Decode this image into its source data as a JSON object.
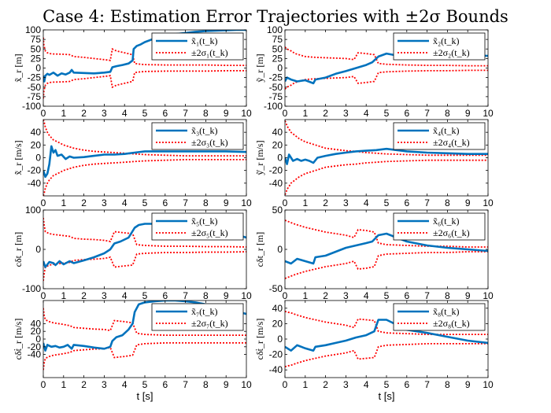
{
  "chart_data": {
    "type": "line",
    "title": "Case 4: Estimation Error Trajectories with ±2σ Bounds",
    "colors": {
      "estimate": "#0072bd",
      "bound": "#ff0000"
    },
    "panels": [
      {
        "id": "p1",
        "ylabel": "x̃_r [m]",
        "xlabel": "",
        "xlim": [
          0,
          10
        ],
        "ylim": [
          -100,
          100
        ],
        "yticks": [
          -100,
          -75,
          -50,
          -25,
          0,
          25,
          50,
          75,
          100
        ],
        "xticks": [
          0,
          1,
          2,
          3,
          4,
          5,
          6,
          7,
          8,
          9,
          10
        ],
        "legend": [
          "x̃₁(t_k)",
          "±2σ₁(t_k)"
        ],
        "estimate": {
          "x": [
            0,
            0.05,
            0.1,
            0.2,
            0.3,
            0.5,
            0.7,
            0.9,
            1.1,
            1.3,
            1.4,
            1.5,
            2,
            2.5,
            3,
            3.3,
            3.4,
            3.6,
            3.9,
            4.2,
            4.4,
            4.45,
            4.6,
            4.8,
            5,
            5.5,
            6,
            6.5,
            7,
            7.5,
            8,
            8.5,
            9,
            9.5,
            10
          ],
          "y": [
            -20,
            -35,
            -20,
            -15,
            -18,
            -12,
            -20,
            -14,
            -17,
            -12,
            -5,
            -12,
            -13,
            -14,
            -12,
            -10,
            2,
            5,
            8,
            12,
            20,
            50,
            58,
            62,
            68,
            78,
            84,
            89,
            92,
            95,
            97,
            98,
            99,
            100,
            100
          ]
        },
        "bound": {
          "x": [
            0,
            0.03,
            0.1,
            0.2,
            0.3,
            0.5,
            1,
            1.3,
            1.5,
            2,
            2.5,
            3,
            3.3,
            3.4,
            3.6,
            4,
            4.4,
            4.5,
            4.8,
            5,
            6,
            7,
            8,
            9,
            10
          ],
          "y": [
            80,
            60,
            45,
            40,
            38,
            37,
            36,
            35,
            30,
            28,
            25,
            22,
            20,
            50,
            45,
            40,
            35,
            12,
            10,
            9,
            8,
            8,
            8,
            7,
            7
          ]
        }
      },
      {
        "id": "p2",
        "ylabel": "ỹ_r [m]",
        "xlabel": "",
        "xlim": [
          0,
          10
        ],
        "ylim": [
          -100,
          100
        ],
        "yticks": [
          -100,
          -75,
          -50,
          -25,
          0,
          25,
          50,
          75,
          100
        ],
        "xticks": [
          0,
          1,
          2,
          3,
          4,
          5,
          6,
          7,
          8,
          9,
          10
        ],
        "legend": [
          "x̃₂(t_k)",
          "±2σ₂(t_k)"
        ],
        "estimate": {
          "x": [
            0,
            0.1,
            0.3,
            0.6,
            1,
            1.4,
            1.5,
            2,
            2.5,
            3,
            3.5,
            4,
            4.3,
            4.6,
            5,
            5.5,
            6,
            7,
            8,
            9,
            10
          ],
          "y": [
            -35,
            -25,
            -30,
            -35,
            -32,
            -40,
            -30,
            -25,
            -15,
            -8,
            0,
            8,
            15,
            30,
            38,
            33,
            35,
            38,
            35,
            34,
            32
          ]
        },
        "bound": {
          "x": [
            0,
            0.1,
            0.3,
            0.5,
            1,
            1.5,
            2,
            2.5,
            3,
            3.4,
            3.6,
            4,
            4.4,
            4.6,
            5,
            6,
            7,
            8,
            9,
            10
          ],
          "y": [
            55,
            50,
            45,
            38,
            30,
            28,
            27,
            26,
            25,
            22,
            40,
            38,
            35,
            12,
            10,
            8,
            7,
            7,
            6,
            6
          ]
        }
      },
      {
        "id": "p3",
        "ylabel": "x̃̇_r [m/s]",
        "xlabel": "",
        "xlim": [
          0,
          10
        ],
        "ylim": [
          -60,
          60
        ],
        "yticks": [
          -40,
          -20,
          0,
          20,
          40
        ],
        "xticks": [
          0,
          1,
          2,
          3,
          4,
          5,
          6,
          7,
          8,
          9,
          10
        ],
        "legend": [
          "x̃₃(t_k)",
          "±2σ₃(t_k)"
        ],
        "estimate": {
          "x": [
            0,
            0.1,
            0.2,
            0.3,
            0.4,
            0.5,
            0.6,
            0.7,
            0.9,
            1.1,
            1.3,
            1.5,
            2,
            2.5,
            3,
            3.5,
            4,
            4.5,
            5,
            6,
            7,
            8,
            9,
            10
          ],
          "y": [
            -20,
            -30,
            -25,
            -10,
            18,
            8,
            12,
            3,
            5,
            -2,
            2,
            0,
            1,
            3,
            5,
            5,
            6,
            8,
            10,
            10,
            10,
            10,
            10,
            9
          ]
        },
        "bound": {
          "x": [
            0,
            0.05,
            0.1,
            0.2,
            0.3,
            0.5,
            0.7,
            1,
            1.5,
            2,
            2.5,
            3,
            3.5,
            4,
            4.5,
            5,
            6,
            7,
            8,
            9,
            10
          ],
          "y": [
            60,
            55,
            48,
            40,
            35,
            28,
            25,
            20,
            15,
            12,
            10,
            9,
            8,
            7,
            6,
            5,
            4,
            3,
            3,
            3,
            3
          ]
        }
      },
      {
        "id": "p4",
        "ylabel": "ỹ̇_r [m/s]",
        "xlabel": "",
        "xlim": [
          0,
          10
        ],
        "ylim": [
          -60,
          60
        ],
        "yticks": [
          -40,
          -20,
          0,
          20,
          40
        ],
        "xticks": [
          0,
          1,
          2,
          3,
          4,
          5,
          6,
          7,
          8,
          9,
          10
        ],
        "legend": [
          "x̃₄(t_k)",
          "±2σ₄(t_k)"
        ],
        "estimate": {
          "x": [
            0,
            0.1,
            0.2,
            0.4,
            0.6,
            0.8,
            1,
            1.2,
            1.4,
            1.6,
            2,
            2.5,
            3,
            3.5,
            4,
            4.5,
            5,
            5.5,
            6,
            7,
            8,
            9,
            10
          ],
          "y": [
            0,
            -10,
            5,
            -5,
            -2,
            -5,
            -3,
            -5,
            -8,
            0,
            3,
            6,
            8,
            10,
            11,
            12,
            14,
            12,
            10,
            8,
            7,
            6,
            6
          ]
        },
        "bound": {
          "x": [
            0,
            0.05,
            0.1,
            0.2,
            0.3,
            0.5,
            0.7,
            1,
            1.5,
            2,
            2.5,
            3,
            3.5,
            4,
            4.5,
            5,
            6,
            7,
            8,
            9,
            10
          ],
          "y": [
            58,
            55,
            50,
            45,
            40,
            35,
            30,
            25,
            20,
            15,
            13,
            11,
            10,
            8,
            7,
            6,
            5,
            4,
            4,
            4,
            4
          ]
        }
      },
      {
        "id": "p5",
        "ylabel": "cδt_r [m]",
        "xlabel": "",
        "xlim": [
          0,
          10
        ],
        "ylim": [
          -100,
          100
        ],
        "yticks": [
          -100,
          0,
          100
        ],
        "xticks": [
          0,
          1,
          2,
          3,
          4,
          5,
          6,
          7,
          8,
          9,
          10
        ],
        "legend": [
          "x̃₅(t_k)",
          "±2σ₅(t_k)"
        ],
        "estimate": {
          "x": [
            0,
            0.1,
            0.3,
            0.5,
            0.6,
            0.8,
            1,
            1.3,
            1.5,
            2,
            2.5,
            3,
            3.3,
            3.5,
            3.8,
            4.2,
            4.5,
            4.7,
            5,
            6,
            7,
            8,
            9,
            10
          ],
          "y": [
            -30,
            -45,
            -32,
            -35,
            -40,
            -30,
            -38,
            -30,
            -35,
            -28,
            -20,
            -10,
            0,
            15,
            20,
            30,
            55,
            62,
            65,
            65,
            62,
            55,
            45,
            30
          ]
        },
        "bound": {
          "x": [
            0,
            0.05,
            0.1,
            0.3,
            0.5,
            1,
            1.3,
            1.5,
            2,
            2.5,
            3,
            3.3,
            3.5,
            4,
            4.4,
            4.6,
            5,
            6,
            7,
            8,
            9,
            10
          ],
          "y": [
            80,
            60,
            45,
            40,
            38,
            35,
            33,
            28,
            26,
            25,
            23,
            20,
            45,
            42,
            40,
            12,
            10,
            8,
            8,
            7,
            7,
            6
          ]
        }
      },
      {
        "id": "p6",
        "ylabel": "cδt_r [m]",
        "xlabel": "",
        "xlim": [
          0,
          10
        ],
        "ylim": [
          -50,
          50
        ],
        "yticks": [
          -50,
          0,
          50
        ],
        "xticks": [
          0,
          1,
          2,
          3,
          4,
          5,
          6,
          7,
          8,
          9,
          10
        ],
        "legend": [
          "x̃₆(t_k)",
          "±2σ₆(t_k)"
        ],
        "estimate": {
          "x": [
            0,
            0.3,
            0.6,
            1,
            1.4,
            1.5,
            2,
            2.5,
            3,
            3.5,
            4,
            4.3,
            4.6,
            5,
            6,
            7,
            8,
            9,
            10
          ],
          "y": [
            -15,
            -18,
            -12,
            -15,
            -18,
            -10,
            -8,
            -3,
            2,
            5,
            8,
            10,
            18,
            20,
            10,
            5,
            2,
            0,
            -2
          ]
        },
        "bound": {
          "x": [
            0,
            0.1,
            0.3,
            0.5,
            1,
            1.5,
            2,
            2.5,
            3,
            3.4,
            3.6,
            4,
            4.4,
            4.6,
            5,
            6,
            7,
            8,
            9,
            10
          ],
          "y": [
            37,
            36,
            34,
            32,
            28,
            25,
            22,
            20,
            18,
            15,
            25,
            24,
            22,
            8,
            6,
            5,
            4,
            4,
            3,
            3
          ]
        }
      },
      {
        "id": "p7",
        "ylabel": "cδṫ_r [m/s]",
        "xlabel": "t [s]",
        "xlim": [
          0,
          10
        ],
        "ylim": [
          -100,
          100
        ],
        "yticks": [
          -40,
          -20,
          0,
          20,
          40
        ],
        "xticks": [
          0,
          1,
          2,
          3,
          4,
          5,
          6,
          7,
          8,
          9,
          10
        ],
        "legend": [
          "x̃₇(t_k)",
          "±2σ₇(t_k)"
        ],
        "estimate": {
          "x": [
            0,
            0.1,
            0.2,
            0.4,
            0.6,
            0.8,
            1,
            1.2,
            1.4,
            1.5,
            2,
            2.5,
            3,
            3.3,
            3.4,
            3.6,
            3.9,
            4.2,
            4.4,
            4.5,
            4.7,
            5,
            5.5,
            6,
            6.5,
            7,
            7.5,
            8,
            8.5,
            9,
            9.5,
            10
          ],
          "y": [
            -10,
            -30,
            -15,
            -20,
            -18,
            -22,
            -20,
            -15,
            -25,
            -15,
            -18,
            -22,
            -25,
            -20,
            -5,
            5,
            10,
            25,
            40,
            70,
            90,
            95,
            98,
            100,
            100,
            98,
            95,
            90,
            85,
            78,
            72,
            65
          ]
        },
        "bound": {
          "x": [
            0,
            0.05,
            0.1,
            0.3,
            0.5,
            1,
            1.3,
            1.5,
            2,
            2.5,
            3,
            3.3,
            3.5,
            4,
            4.4,
            4.6,
            5,
            6,
            7,
            8,
            9,
            10
          ],
          "y": [
            80,
            60,
            50,
            45,
            42,
            38,
            35,
            30,
            28,
            26,
            25,
            22,
            48,
            45,
            42,
            15,
            12,
            10,
            10,
            10,
            10,
            10
          ]
        }
      },
      {
        "id": "p8",
        "ylabel": "cδṫ_r [m/s]",
        "xlabel": "t [s]",
        "xlim": [
          0,
          10
        ],
        "ylim": [
          -50,
          50
        ],
        "yticks": [
          -40,
          -20,
          0,
          20,
          40
        ],
        "xticks": [
          0,
          1,
          2,
          3,
          4,
          5,
          6,
          7,
          8,
          9,
          10
        ],
        "legend": [
          "x̃₈(t_k)",
          "±2σ₈(t_k)"
        ],
        "estimate": {
          "x": [
            0,
            0.3,
            0.6,
            1,
            1.4,
            1.5,
            2,
            2.5,
            3,
            3.5,
            4,
            4.4,
            4.6,
            5,
            6,
            7,
            8,
            9,
            10
          ],
          "y": [
            -10,
            -15,
            -8,
            -12,
            -15,
            -10,
            -8,
            -5,
            -2,
            2,
            5,
            10,
            25,
            25,
            12,
            8,
            3,
            -2,
            -5
          ]
        },
        "bound": {
          "x": [
            0,
            0.1,
            0.3,
            0.5,
            1,
            1.5,
            2,
            2.5,
            3,
            3.4,
            3.6,
            4,
            4.4,
            4.6,
            5,
            6,
            7,
            8,
            9,
            10
          ],
          "y": [
            36,
            35,
            34,
            32,
            28,
            25,
            22,
            20,
            18,
            15,
            26,
            25,
            24,
            10,
            8,
            7,
            6,
            6,
            6,
            6
          ]
        }
      }
    ]
  }
}
